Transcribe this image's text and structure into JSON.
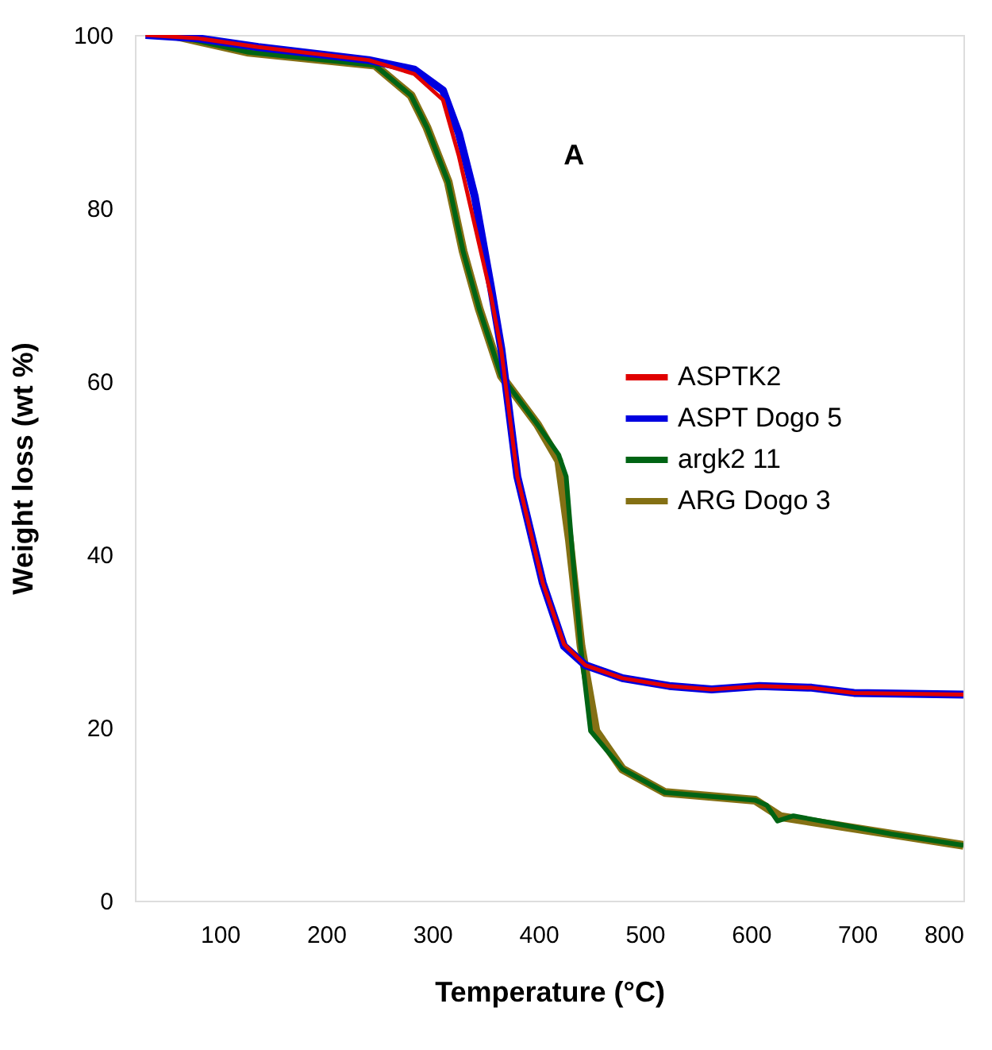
{
  "chart_data": {
    "type": "line",
    "xlabel": "Temperature (°C)",
    "ylabel": "Weight loss (wt %)",
    "annotations": [
      "A"
    ],
    "xlim": [
      20,
      800
    ],
    "xticks": [
      100,
      200,
      300,
      400,
      500,
      600,
      700,
      800
    ],
    "ylim": [
      0,
      100
    ],
    "yticks": [
      0,
      20,
      40,
      60,
      80,
      100
    ],
    "grid": false,
    "legend": "right",
    "line_style": "solid",
    "marker": "none",
    "series": [
      {
        "name": "ASPTK2",
        "color": "#e00000",
        "x": [
          30,
          80,
          136,
          240,
          283,
          310,
          325,
          340,
          355,
          365,
          380,
          404,
          424,
          444,
          479,
          523,
          563,
          608,
          657,
          697,
          800
        ],
        "values": [
          100,
          99.6,
          98.6,
          97.1,
          95.5,
          92.5,
          86,
          78,
          70,
          63.5,
          49,
          36.7,
          29.6,
          27.2,
          25.7,
          24.8,
          24.4,
          24.8,
          24.6,
          24,
          23.8
        ]
      },
      {
        "name": "ASPT Dogo 5",
        "color": "#0000e0",
        "x": [
          30,
          80,
          136,
          240,
          283,
          310,
          325,
          340,
          355,
          365,
          380,
          404,
          424,
          444,
          479,
          523,
          563,
          608,
          657,
          697,
          800
        ],
        "values": [
          100,
          99.6,
          98.6,
          97.1,
          96,
          93.6,
          88.6,
          81.3,
          71,
          63.7,
          49,
          36.7,
          29.4,
          27.2,
          25.7,
          24.8,
          24.4,
          24.8,
          24.6,
          24,
          23.8
        ]
      },
      {
        "name": "argk2 11",
        "color": "#006414",
        "x": [
          54,
          127,
          246,
          280,
          295,
          315,
          329,
          344,
          365,
          399,
          419,
          426,
          432,
          440,
          449,
          479,
          519,
          604,
          615,
          625,
          640,
          732,
          800
        ],
        "values": [
          100,
          98,
          96.5,
          93,
          89.3,
          83,
          75,
          68.4,
          60.6,
          55,
          51.5,
          49,
          40,
          29,
          19.6,
          15.2,
          12.5,
          11.6,
          11,
          9.2,
          9.8,
          7.7,
          6.4
        ]
      },
      {
        "name": "ARG Dogo 3",
        "color": "#847014",
        "x": [
          54,
          127,
          246,
          280,
          295,
          315,
          329,
          344,
          365,
          399,
          419,
          429,
          440,
          454,
          479,
          519,
          604,
          628,
          732,
          800
        ],
        "values": [
          100,
          98,
          96.5,
          93,
          89.3,
          83,
          75,
          68.4,
          60.6,
          55,
          50.8,
          41.7,
          29.4,
          19.6,
          15.2,
          12.5,
          11.6,
          9.7,
          7.7,
          6.4
        ]
      }
    ]
  }
}
